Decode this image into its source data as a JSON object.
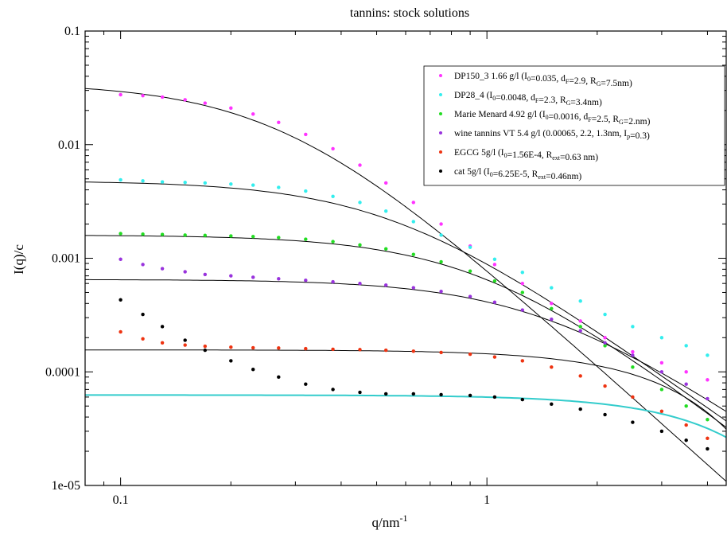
{
  "chart_data": {
    "type": "scatter",
    "title": "tannins: stock solutions",
    "xlabel": {
      "main": "q/nm",
      "sup": "-1"
    },
    "ylabel": "I(q)/c",
    "x_scale": "log",
    "y_scale": "log",
    "xlim": [
      0.08,
      4.5
    ],
    "ylim": [
      1e-05,
      0.1
    ],
    "x_ticks": [
      {
        "value": 0.1,
        "label": "0.1"
      },
      {
        "value": 1,
        "label": "1"
      }
    ],
    "y_ticks": [
      {
        "value": 0.1,
        "label": "0.1"
      },
      {
        "value": 0.01,
        "label": "0.01"
      },
      {
        "value": 0.001,
        "label": "0.001"
      },
      {
        "value": 0.0001,
        "label": "0.0001"
      },
      {
        "value": 1e-05,
        "label": "1e-05"
      }
    ],
    "grid": false,
    "legend_position": "top-right",
    "legend": [
      {
        "color": "#ff33ff",
        "parts": [
          {
            "t": "DP150_3 1.66 g/l (I"
          },
          {
            "t": "0",
            "sub": true
          },
          {
            "t": "=0.035,  d"
          },
          {
            "t": "F",
            "sub": true
          },
          {
            "t": "=2.9,  R"
          },
          {
            "t": "G",
            "sub": true
          },
          {
            "t": "=7.5nm)"
          }
        ]
      },
      {
        "color": "#33eeee",
        "parts": [
          {
            "t": "DP28_4 (I"
          },
          {
            "t": "0",
            "sub": true
          },
          {
            "t": "=0.0048, d"
          },
          {
            "t": "F",
            "sub": true
          },
          {
            "t": "=2.3, R"
          },
          {
            "t": "G",
            "sub": true
          },
          {
            "t": "=3.4nm)"
          }
        ]
      },
      {
        "color": "#22dd22",
        "parts": [
          {
            "t": "Marie Menard 4.92 g/l (I"
          },
          {
            "t": "0",
            "sub": true
          },
          {
            "t": "=0.0016, d"
          },
          {
            "t": "F",
            "sub": true
          },
          {
            "t": "=2.5, R"
          },
          {
            "t": "G",
            "sub": true
          },
          {
            "t": "=2.nm)"
          }
        ]
      },
      {
        "color": "#9933dd",
        "parts": [
          {
            "t": "wine tannins VT 5.4 g/l (0.00065, 2.2, 1.3nm, I"
          },
          {
            "t": "p",
            "sub": true
          },
          {
            "t": "=0.3)"
          }
        ]
      },
      {
        "color": "#ee3311",
        "parts": [
          {
            "t": "EGCG 5g/l (I"
          },
          {
            "t": "0",
            "sub": true
          },
          {
            "t": "=1.56E-4, R"
          },
          {
            "t": "ext",
            "sub": true
          },
          {
            "t": "=0.63 nm)"
          }
        ]
      },
      {
        "color": "#000000",
        "parts": [
          {
            "t": "cat 5g/l (I"
          },
          {
            "t": "0",
            "sub": true
          },
          {
            "t": "=6.25E-5, R"
          },
          {
            "t": "ext",
            "sub": true
          },
          {
            "t": "=0.46nm)"
          }
        ]
      }
    ],
    "series": [
      {
        "color": "#ff33ff",
        "fit": {
          "model": "mass-fractal",
          "I0": 0.035,
          "dF": 2.9,
          "RG": 7.5
        },
        "points": [
          [
            0.1,
            0.0275
          ],
          [
            0.115,
            0.027
          ],
          [
            0.13,
            0.0262
          ],
          [
            0.15,
            0.0248
          ],
          [
            0.17,
            0.0232
          ],
          [
            0.2,
            0.021
          ],
          [
            0.23,
            0.0186
          ],
          [
            0.27,
            0.0157
          ],
          [
            0.32,
            0.0123
          ],
          [
            0.38,
            0.0092
          ],
          [
            0.45,
            0.0066
          ],
          [
            0.53,
            0.0046
          ],
          [
            0.63,
            0.0031
          ],
          [
            0.75,
            0.002
          ],
          [
            0.9,
            0.00128
          ],
          [
            1.05,
            0.00088
          ],
          [
            1.25,
            0.0006
          ],
          [
            1.5,
            0.0004
          ],
          [
            1.8,
            0.00028
          ],
          [
            2.1,
            0.0002
          ],
          [
            2.5,
            0.00015
          ],
          [
            3.0,
            0.00012
          ],
          [
            3.5,
            0.0001
          ],
          [
            4.0,
            8.5e-05
          ]
        ]
      },
      {
        "color": "#33eeee",
        "fit": {
          "model": "mass-fractal",
          "I0": 0.0048,
          "dF": 2.3,
          "RG": 3.4
        },
        "points": [
          [
            0.1,
            0.0049
          ],
          [
            0.115,
            0.0048
          ],
          [
            0.13,
            0.0047
          ],
          [
            0.15,
            0.00465
          ],
          [
            0.17,
            0.0046
          ],
          [
            0.2,
            0.0045
          ],
          [
            0.23,
            0.0044
          ],
          [
            0.27,
            0.0042
          ],
          [
            0.32,
            0.0039
          ],
          [
            0.38,
            0.0035
          ],
          [
            0.45,
            0.0031
          ],
          [
            0.53,
            0.0026
          ],
          [
            0.63,
            0.0021
          ],
          [
            0.75,
            0.0016
          ],
          [
            0.9,
            0.00125
          ],
          [
            1.05,
            0.00098
          ],
          [
            1.25,
            0.00075
          ],
          [
            1.5,
            0.00055
          ],
          [
            1.8,
            0.00042
          ],
          [
            2.1,
            0.00032
          ],
          [
            2.5,
            0.00025
          ],
          [
            3.0,
            0.0002
          ],
          [
            3.5,
            0.00017
          ],
          [
            4.0,
            0.00014
          ]
        ]
      },
      {
        "color": "#22dd22",
        "fit": {
          "model": "mass-fractal",
          "I0": 0.0016,
          "dF": 2.5,
          "RG": 2.0
        },
        "points": [
          [
            0.1,
            0.00165
          ],
          [
            0.115,
            0.00163
          ],
          [
            0.13,
            0.00162
          ],
          [
            0.15,
            0.0016
          ],
          [
            0.17,
            0.00159
          ],
          [
            0.2,
            0.00157
          ],
          [
            0.23,
            0.00155
          ],
          [
            0.27,
            0.00152
          ],
          [
            0.32,
            0.00147
          ],
          [
            0.38,
            0.0014
          ],
          [
            0.45,
            0.00131
          ],
          [
            0.53,
            0.00121
          ],
          [
            0.63,
            0.00108
          ],
          [
            0.75,
            0.00093
          ],
          [
            0.9,
            0.00077
          ],
          [
            1.05,
            0.00063
          ],
          [
            1.25,
            0.0005
          ],
          [
            1.5,
            0.00036
          ],
          [
            1.8,
            0.00025
          ],
          [
            2.1,
            0.00017
          ],
          [
            2.5,
            0.00011
          ],
          [
            3.0,
            7e-05
          ],
          [
            3.5,
            5e-05
          ],
          [
            4.0,
            3.8e-05
          ]
        ]
      },
      {
        "color": "#9933dd",
        "fit": {
          "model": "mass-fractal",
          "I0": 0.00065,
          "dF": 2.2,
          "RG": 1.3,
          "Ip": 0.3
        },
        "points": [
          [
            0.1,
            0.00098
          ],
          [
            0.115,
            0.00088
          ],
          [
            0.13,
            0.00081
          ],
          [
            0.15,
            0.00076
          ],
          [
            0.17,
            0.00072
          ],
          [
            0.2,
            0.0007
          ],
          [
            0.23,
            0.00068
          ],
          [
            0.27,
            0.00066
          ],
          [
            0.32,
            0.00064
          ],
          [
            0.38,
            0.00062
          ],
          [
            0.45,
            0.0006
          ],
          [
            0.53,
            0.00058
          ],
          [
            0.63,
            0.00055
          ],
          [
            0.75,
            0.00051
          ],
          [
            0.9,
            0.00046
          ],
          [
            1.05,
            0.00041
          ],
          [
            1.25,
            0.00035
          ],
          [
            1.5,
            0.00029
          ],
          [
            1.8,
            0.00023
          ],
          [
            2.1,
            0.00018
          ],
          [
            2.5,
            0.00014
          ],
          [
            3.0,
            0.0001
          ],
          [
            3.5,
            7.8e-05
          ],
          [
            4.0,
            5.8e-05
          ]
        ]
      },
      {
        "color": "#ee3311",
        "fit": {
          "model": "sphere",
          "I0": 0.000156,
          "Rext": 0.63
        },
        "points": [
          [
            0.1,
            0.000225
          ],
          [
            0.115,
            0.000195
          ],
          [
            0.13,
            0.00018
          ],
          [
            0.15,
            0.000172
          ],
          [
            0.17,
            0.000168
          ],
          [
            0.2,
            0.000165
          ],
          [
            0.23,
            0.000163
          ],
          [
            0.27,
            0.000162
          ],
          [
            0.32,
            0.00016
          ],
          [
            0.38,
            0.000158
          ],
          [
            0.45,
            0.000157
          ],
          [
            0.53,
            0.000155
          ],
          [
            0.63,
            0.000152
          ],
          [
            0.75,
            0.000148
          ],
          [
            0.9,
            0.000143
          ],
          [
            1.05,
            0.000135
          ],
          [
            1.25,
            0.000125
          ],
          [
            1.5,
            0.00011
          ],
          [
            1.8,
            9.2e-05
          ],
          [
            2.1,
            7.5e-05
          ],
          [
            2.5,
            6e-05
          ],
          [
            3.0,
            4.5e-05
          ],
          [
            3.5,
            3.4e-05
          ],
          [
            4.0,
            2.6e-05
          ]
        ]
      },
      {
        "color": "#000000",
        "fit": {
          "model": "sphere",
          "I0": 6.25e-05,
          "Rext": 0.46
        },
        "points": [
          [
            0.1,
            0.00043
          ],
          [
            0.115,
            0.00032
          ],
          [
            0.13,
            0.00025
          ],
          [
            0.15,
            0.00019
          ],
          [
            0.17,
            0.000155
          ],
          [
            0.2,
            0.000125
          ],
          [
            0.23,
            0.000105
          ],
          [
            0.27,
            9e-05
          ],
          [
            0.32,
            7.8e-05
          ],
          [
            0.38,
            7e-05
          ],
          [
            0.45,
            6.6e-05
          ],
          [
            0.53,
            6.4e-05
          ],
          [
            0.63,
            6.4e-05
          ],
          [
            0.75,
            6.3e-05
          ],
          [
            0.9,
            6.2e-05
          ],
          [
            1.05,
            6e-05
          ],
          [
            1.25,
            5.7e-05
          ],
          [
            1.5,
            5.2e-05
          ],
          [
            1.8,
            4.7e-05
          ],
          [
            2.1,
            4.2e-05
          ],
          [
            2.5,
            3.6e-05
          ],
          [
            3.0,
            3e-05
          ],
          [
            3.5,
            2.5e-05
          ],
          [
            4.0,
            2.1e-05
          ]
        ]
      }
    ]
  }
}
